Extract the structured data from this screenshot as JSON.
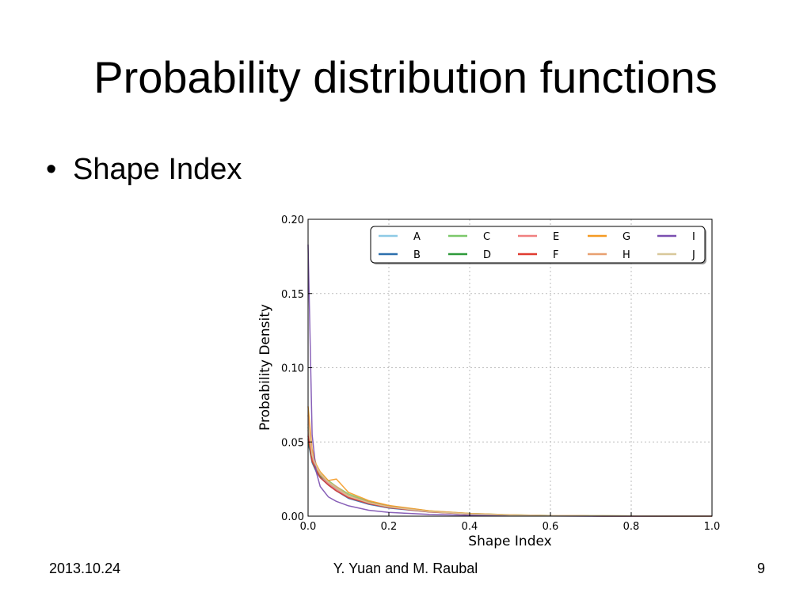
{
  "slide": {
    "title": "Probability distribution functions",
    "bullet_marker": "•",
    "bullet": "Shape Index",
    "footer": {
      "date": "2013.10.24",
      "author": "Y. Yuan and M. Raubal",
      "page": "9"
    }
  },
  "chart_data": {
    "type": "line",
    "xlabel": "Shape Index",
    "ylabel": "Probability Density",
    "xlim": [
      0.0,
      1.0
    ],
    "ylim": [
      0.0,
      0.2
    ],
    "xticks": [
      "0.0",
      "0.2",
      "0.4",
      "0.6",
      "0.8",
      "1.0"
    ],
    "yticks": [
      "0.00",
      "0.05",
      "0.10",
      "0.15",
      "0.20"
    ],
    "grid": true,
    "legend_position": "top",
    "x": [
      0.0,
      0.01,
      0.02,
      0.03,
      0.05,
      0.07,
      0.1,
      0.15,
      0.2,
      0.3,
      0.4,
      0.5,
      0.6,
      0.7,
      1.0
    ],
    "series": [
      {
        "name": "A",
        "color": "#8ecae6",
        "values": [
          0.055,
          0.038,
          0.032,
          0.027,
          0.022,
          0.018,
          0.013,
          0.009,
          0.006,
          0.003,
          0.0015,
          0.0008,
          0.0004,
          0.0002,
          0.0
        ]
      },
      {
        "name": "B",
        "color": "#2c6fad",
        "values": [
          0.05,
          0.036,
          0.03,
          0.026,
          0.021,
          0.017,
          0.012,
          0.008,
          0.0055,
          0.0028,
          0.0014,
          0.0007,
          0.0003,
          0.0001,
          0.0
        ]
      },
      {
        "name": "C",
        "color": "#7cc86a",
        "values": [
          0.06,
          0.04,
          0.034,
          0.029,
          0.024,
          0.02,
          0.015,
          0.01,
          0.007,
          0.0035,
          0.0018,
          0.0009,
          0.0004,
          0.0002,
          0.0
        ]
      },
      {
        "name": "D",
        "color": "#2e9a3a",
        "values": [
          0.052,
          0.037,
          0.031,
          0.027,
          0.023,
          0.019,
          0.014,
          0.0095,
          0.0068,
          0.0033,
          0.0017,
          0.0008,
          0.0004,
          0.0002,
          0.0
        ]
      },
      {
        "name": "E",
        "color": "#f08080",
        "values": [
          0.058,
          0.039,
          0.033,
          0.028,
          0.022,
          0.018,
          0.013,
          0.0088,
          0.006,
          0.003,
          0.0015,
          0.0007,
          0.0003,
          0.0001,
          0.0
        ]
      },
      {
        "name": "F",
        "color": "#e03c31",
        "values": [
          0.054,
          0.037,
          0.031,
          0.026,
          0.021,
          0.017,
          0.0125,
          0.0085,
          0.0058,
          0.0029,
          0.0014,
          0.0007,
          0.0003,
          0.0001,
          0.0
        ]
      },
      {
        "name": "G",
        "color": "#f59a23",
        "values": [
          0.074,
          0.045,
          0.035,
          0.03,
          0.024,
          0.025,
          0.016,
          0.0105,
          0.0072,
          0.0036,
          0.0018,
          0.0009,
          0.0004,
          0.0002,
          0.0
        ]
      },
      {
        "name": "H",
        "color": "#e8a070",
        "values": [
          0.068,
          0.042,
          0.033,
          0.028,
          0.023,
          0.02,
          0.014,
          0.0095,
          0.0065,
          0.0032,
          0.0016,
          0.0008,
          0.0004,
          0.0002,
          0.0
        ]
      },
      {
        "name": "I",
        "color": "#7b4fb0",
        "values": [
          0.183,
          0.055,
          0.03,
          0.02,
          0.013,
          0.01,
          0.007,
          0.004,
          0.0025,
          0.0012,
          0.0006,
          0.0003,
          0.0001,
          0.0,
          0.0
        ]
      },
      {
        "name": "J",
        "color": "#d8c89a",
        "values": [
          0.062,
          0.041,
          0.034,
          0.029,
          0.023,
          0.019,
          0.0135,
          0.009,
          0.0062,
          0.0031,
          0.0015,
          0.0007,
          0.0003,
          0.0001,
          0.0
        ]
      }
    ]
  }
}
